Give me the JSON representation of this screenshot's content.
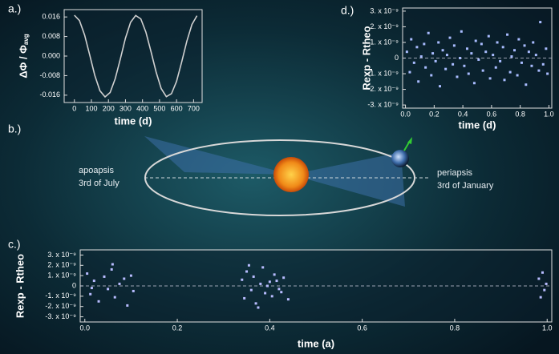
{
  "chart_data": [
    {
      "type": "line",
      "title": "a.)",
      "xlabel": "time (d)",
      "ylabel": "ΔΦ / Φ",
      "ylabel_sub": "avg",
      "color": "#d0d0d0",
      "x": [
        0,
        30,
        60,
        90,
        120,
        150,
        180,
        210,
        240,
        270,
        300,
        330,
        360,
        390,
        420,
        450,
        480,
        510,
        540,
        570,
        600,
        630,
        660,
        690,
        720
      ],
      "values": [
        0.0167,
        0.0145,
        0.0086,
        0.0004,
        -0.0079,
        -0.0142,
        -0.0167,
        -0.0149,
        -0.0092,
        -0.0011,
        0.0073,
        0.0138,
        0.0166,
        0.0152,
        0.0098,
        0.0018,
        -0.0066,
        -0.0133,
        -0.0166,
        -0.0154,
        -0.0104,
        -0.0025,
        0.006,
        0.0129,
        0.0165
      ],
      "xlim": [
        -60,
        750
      ],
      "xticks": [
        0,
        100,
        200,
        300,
        400,
        500,
        600,
        700
      ],
      "ylim": [
        -0.019,
        0.019
      ],
      "yticks": [
        0.016,
        0.008,
        {
          "value": 0,
          "label": "0.000"
        },
        -0.008,
        -0.016
      ]
    },
    {
      "type": "scatter",
      "title": "d.)",
      "xlabel": "time (d)",
      "ylabel": "Rexp - Rtheo",
      "color": "#a9bcff",
      "x": [
        0.01,
        0.03,
        0.04,
        0.06,
        0.08,
        0.09,
        0.11,
        0.13,
        0.14,
        0.16,
        0.18,
        0.19,
        0.21,
        0.23,
        0.24,
        0.26,
        0.28,
        0.29,
        0.31,
        0.33,
        0.34,
        0.36,
        0.38,
        0.39,
        0.41,
        0.43,
        0.44,
        0.46,
        0.48,
        0.49,
        0.51,
        0.53,
        0.54,
        0.56,
        0.58,
        0.59,
        0.61,
        0.63,
        0.64,
        0.66,
        0.68,
        0.69,
        0.71,
        0.73,
        0.74,
        0.76,
        0.78,
        0.79,
        0.81,
        0.83,
        0.84,
        0.86,
        0.88,
        0.89,
        0.91,
        0.93,
        0.94,
        0.96,
        0.98,
        0.99
      ],
      "values": [
        4e-10,
        -9e-10,
        1.2e-09,
        -3e-10,
        7e-10,
        -1.5e-09,
        1e-10,
        9e-10,
        -6e-10,
        1.6e-09,
        -1.1e-09,
        3e-10,
        -2e-10,
        1e-09,
        -1.8e-09,
        5e-10,
        -7e-10,
        2e-10,
        1.3e-09,
        -4e-10,
        8e-10,
        -1.2e-09,
        0.0,
        1.7e-09,
        -5e-10,
        6e-10,
        -1e-09,
        3e-10,
        -1.6e-09,
        1.1e-09,
        -1e-10,
        9e-10,
        -8e-10,
        4e-10,
        1.4e-09,
        -1.3e-09,
        2e-10,
        -6e-10,
        1e-09,
        -2e-10,
        7e-10,
        -1.4e-09,
        1.5e-09,
        -9e-10,
        1e-10,
        5e-10,
        -1.1e-09,
        1.2e-09,
        -3e-10,
        8e-10,
        -1.7e-09,
        4e-10,
        -5e-10,
        1e-09,
        2e-10,
        -8e-10,
        2.3e-09,
        -4e-10,
        6e-10,
        -1e-09
      ],
      "xlim": [
        -0.02,
        1.02
      ],
      "xticks": [
        {
          "value": 0,
          "label": "0.0"
        },
        0.2,
        0.4,
        0.6,
        0.8,
        {
          "value": 1,
          "label": "1.0"
        }
      ],
      "ylim": [
        -3.2e-09,
        3.2e-09
      ],
      "yticks": [
        {
          "value": 3e-09,
          "label": "3. x 10⁻⁹"
        },
        {
          "value": 2e-09,
          "label": "2. x 10⁻⁹"
        },
        {
          "value": 1e-09,
          "label": "1. x 10⁻⁹"
        },
        0,
        {
          "value": -1e-09,
          "label": "-1. x 10⁻⁹"
        },
        {
          "value": -2e-09,
          "label": "-2. x 10⁻⁹"
        },
        {
          "value": -3e-09,
          "label": "-3. x 10⁻⁹"
        }
      ]
    },
    {
      "type": "orbit",
      "title": "b.)",
      "left_label": "apoapsis",
      "left_date": "3rd of July",
      "right_label": "periapsis",
      "right_date": "3rd of January"
    },
    {
      "type": "scatter",
      "title": "c.)",
      "xlabel": "time (a)",
      "ylabel": "Rexp - Rtheo",
      "color": "#b8bcff",
      "x": [
        0.005,
        0.012,
        0.02,
        0.03,
        0.042,
        0.05,
        0.058,
        0.065,
        0.075,
        0.085,
        0.092,
        0.1,
        0.105,
        0.015,
        0.06,
        0.34,
        0.345,
        0.35,
        0.36,
        0.365,
        0.37,
        0.38,
        0.385,
        0.39,
        0.4,
        0.405,
        0.41,
        0.42,
        0.43,
        0.44,
        0.355,
        0.375,
        0.395,
        0.415,
        0.425,
        0.982,
        0.986,
        0.99,
        0.994,
        0.998
      ],
      "values": [
        1.2e-09,
        -8e-10,
        5e-10,
        -1.5e-09,
        9e-10,
        -3e-10,
        1.6e-09,
        -1.1e-09,
        2e-10,
        7e-10,
        -1.9e-09,
        1e-09,
        -5e-10,
        -2e-10,
        2.1e-09,
        6e-10,
        -1.2e-09,
        1.4e-09,
        -4e-10,
        9e-10,
        -1.7e-09,
        2e-10,
        1.8e-09,
        -7e-10,
        4e-10,
        -1e-09,
        1.1e-09,
        -3e-10,
        8e-10,
        -1.3e-09,
        2e-09,
        -2.1e-09,
        0.0,
        5e-10,
        -6e-10,
        7e-10,
        -1.1e-09,
        1.3e-09,
        -4e-10,
        2e-10
      ],
      "xlim": [
        -0.01,
        1.01
      ],
      "xticks": [
        {
          "value": 0,
          "label": "0.0"
        },
        0.2,
        0.4,
        0.6,
        0.8,
        {
          "value": 1,
          "label": "1.0"
        }
      ],
      "ylim": [
        -3.5e-09,
        3.5e-09
      ],
      "yticks": [
        {
          "value": 3e-09,
          "label": "3. x 10⁻⁹"
        },
        {
          "value": 2e-09,
          "label": "2. x 10⁻⁹"
        },
        {
          "value": 1e-09,
          "label": "1. x 10⁻⁹"
        },
        0,
        {
          "value": -1e-09,
          "label": "-1. x 10⁻⁹"
        },
        {
          "value": -2e-09,
          "label": "-2. x 10⁻⁹"
        },
        {
          "value": -3e-09,
          "label": "-3. x 10⁻⁹"
        }
      ]
    }
  ]
}
